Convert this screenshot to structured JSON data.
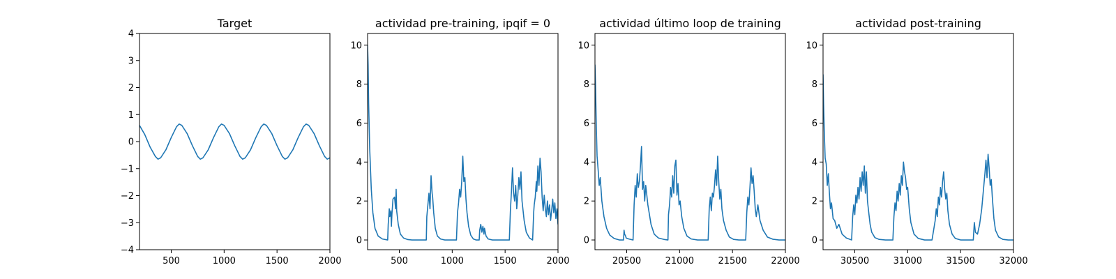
{
  "chart_data": [
    {
      "type": "line",
      "title": "Target",
      "xlim": [
        200,
        2000
      ],
      "ylim": [
        -4,
        4
      ],
      "xticks": [
        500,
        1000,
        1500,
        2000
      ],
      "yticks": [
        -4,
        -3,
        -2,
        -1,
        0,
        1,
        2,
        3,
        4
      ],
      "color": "#1f77b4",
      "series": [
        {
          "x": [
            200,
            250,
            300,
            350,
            375,
            400,
            450,
            500,
            550,
            575,
            600,
            650,
            700,
            750,
            775,
            800,
            850,
            900,
            950,
            975,
            1000,
            1050,
            1100,
            1150,
            1175,
            1200,
            1250,
            1300,
            1350,
            1375,
            1400,
            1450,
            1500,
            1550,
            1575,
            1600,
            1650,
            1700,
            1750,
            1775,
            1800,
            1850,
            1900,
            1950,
            1975,
            2000
          ],
          "values": [
            0.6,
            0.26,
            -0.2,
            -0.55,
            -0.65,
            -0.6,
            -0.3,
            0.15,
            0.55,
            0.65,
            0.6,
            0.3,
            -0.15,
            -0.55,
            -0.65,
            -0.6,
            -0.3,
            0.15,
            0.55,
            0.65,
            0.6,
            0.3,
            -0.15,
            -0.55,
            -0.65,
            -0.6,
            -0.3,
            0.15,
            0.55,
            0.65,
            0.6,
            0.3,
            -0.15,
            -0.55,
            -0.65,
            -0.6,
            -0.3,
            0.15,
            0.55,
            0.65,
            0.6,
            0.3,
            -0.15,
            -0.55,
            -0.65,
            -0.6
          ]
        }
      ]
    },
    {
      "type": "line",
      "title": "actividad pre-training, ipqif = 0",
      "xlim": [
        200,
        2000
      ],
      "ylim": [
        -0.5,
        10.6
      ],
      "xticks": [
        500,
        1000,
        1500,
        2000
      ],
      "yticks": [
        0,
        2,
        4,
        6,
        8,
        10
      ],
      "color": "#1f77b4",
      "series": [
        {
          "x": [
            200,
            205,
            210,
            220,
            235,
            250,
            270,
            300,
            340,
            390,
            395,
            405,
            410,
            420,
            425,
            430,
            440,
            455,
            465,
            470,
            475,
            490,
            510,
            540,
            580,
            620,
            690,
            755,
            760,
            770,
            780,
            790,
            800,
            810,
            815,
            825,
            840,
            860,
            890,
            930,
            990,
            1040,
            1050,
            1060,
            1070,
            1080,
            1090,
            1100,
            1110,
            1120,
            1130,
            1140,
            1155,
            1175,
            1200,
            1225,
            1240,
            1255,
            1260,
            1270,
            1280,
            1290,
            1300,
            1305,
            1320,
            1340,
            1380,
            1450,
            1540,
            1550,
            1560,
            1570,
            1580,
            1590,
            1600,
            1610,
            1620,
            1630,
            1640,
            1650,
            1660,
            1680,
            1700,
            1730,
            1760,
            1770,
            1775,
            1785,
            1795,
            1800,
            1810,
            1820,
            1830,
            1840,
            1850,
            1860,
            1870,
            1880,
            1890,
            1900,
            1910,
            1920,
            1930,
            1940,
            1950,
            1960,
            1970,
            1980,
            1990,
            2000
          ],
          "values": [
            10.0,
            9.0,
            7.0,
            4.7,
            2.6,
            1.4,
            0.6,
            0.2,
            0.05,
            0.0,
            0.8,
            1.6,
            1.2,
            1.5,
            0.7,
            1.3,
            2.1,
            2.2,
            1.6,
            2.6,
            1.5,
            0.8,
            0.3,
            0.1,
            0.02,
            0.0,
            0.0,
            0.0,
            1.2,
            1.8,
            2.4,
            1.6,
            3.3,
            2.4,
            2.2,
            1.4,
            0.6,
            0.2,
            0.05,
            0.0,
            0.0,
            0.0,
            1.4,
            1.9,
            2.6,
            2.2,
            3.0,
            4.3,
            3.0,
            3.2,
            2.1,
            1.4,
            0.7,
            0.25,
            0.05,
            0.0,
            0.0,
            0.0,
            0.5,
            0.8,
            0.4,
            0.7,
            0.3,
            0.6,
            0.2,
            0.05,
            0.0,
            0.0,
            0.0,
            1.5,
            2.5,
            3.7,
            2.4,
            2.0,
            2.8,
            1.6,
            2.3,
            3.2,
            2.6,
            3.5,
            2.0,
            1.0,
            0.4,
            0.1,
            0.0,
            1.4,
            1.8,
            2.2,
            3.0,
            2.5,
            3.8,
            2.8,
            4.2,
            3.5,
            2.2,
            1.5,
            2.3,
            1.6,
            1.2,
            2.0,
            1.3,
            1.8,
            1.0,
            1.5,
            2.1,
            1.4,
            1.9,
            1.1,
            1.6,
            0.8
          ]
        }
      ]
    },
    {
      "type": "line",
      "title": "actividad último loop de training",
      "xlim": [
        20200,
        22000
      ],
      "ylim": [
        -0.5,
        10.6
      ],
      "xticks": [
        20500,
        21000,
        21500,
        22000
      ],
      "yticks": [
        0,
        2,
        4,
        6,
        8,
        10
      ],
      "color": "#1f77b4",
      "series": [
        {
          "x": [
            20200,
            20205,
            20212,
            20220,
            20230,
            20240,
            20250,
            20265,
            20285,
            20310,
            20340,
            20380,
            20430,
            20470,
            20475,
            20480,
            20490,
            20495,
            20520,
            20560,
            20570,
            20580,
            20590,
            20600,
            20610,
            20620,
            20630,
            20640,
            20650,
            20660,
            20670,
            20680,
            20700,
            20730,
            20760,
            20800,
            20860,
            20890,
            20895,
            20905,
            20915,
            20925,
            20935,
            20945,
            20955,
            20965,
            20975,
            20985,
            20995,
            21005,
            21020,
            21040,
            21070,
            21110,
            21170,
            21230,
            21270,
            21280,
            21290,
            21300,
            21310,
            21320,
            21330,
            21340,
            21350,
            21360,
            21370,
            21380,
            21390,
            21400,
            21415,
            21440,
            21470,
            21510,
            21560,
            21625,
            21635,
            21645,
            21655,
            21665,
            21675,
            21685,
            21695,
            21705,
            21715,
            21725,
            21740,
            21760,
            21790,
            21830,
            21880,
            21940,
            22000
          ],
          "values": [
            9.0,
            8.0,
            6.0,
            4.3,
            3.6,
            2.8,
            3.2,
            2.0,
            1.2,
            0.6,
            0.25,
            0.08,
            0.0,
            0.0,
            0.5,
            0.3,
            0.2,
            0.1,
            0.05,
            0.0,
            1.8,
            2.8,
            2.2,
            3.4,
            2.7,
            3.0,
            3.8,
            4.8,
            2.6,
            3.0,
            2.0,
            2.8,
            1.8,
            0.8,
            0.3,
            0.1,
            0.02,
            0.0,
            1.3,
            1.8,
            2.7,
            2.2,
            3.3,
            2.4,
            3.8,
            4.1,
            2.3,
            2.9,
            1.8,
            2.0,
            1.2,
            0.6,
            0.2,
            0.05,
            0.0,
            0.0,
            0.0,
            1.6,
            2.2,
            1.5,
            2.4,
            2.2,
            2.8,
            3.6,
            2.8,
            4.3,
            3.0,
            2.1,
            2.6,
            1.6,
            1.0,
            0.5,
            0.15,
            0.03,
            0.0,
            0.0,
            1.4,
            2.2,
            1.8,
            2.7,
            3.7,
            2.9,
            3.3,
            2.5,
            1.6,
            1.2,
            1.8,
            1.0,
            0.5,
            0.15,
            0.04,
            0.0,
            0.0
          ]
        }
      ]
    },
    {
      "type": "line",
      "title": "actividad post-training",
      "xlim": [
        30200,
        32000
      ],
      "ylim": [
        -0.5,
        10.6
      ],
      "xticks": [
        30500,
        31000,
        31500,
        32000
      ],
      "yticks": [
        0,
        2,
        4,
        6,
        8,
        10
      ],
      "color": "#1f77b4",
      "series": [
        {
          "x": [
            30200,
            30205,
            30212,
            30220,
            30230,
            30240,
            30250,
            30260,
            30270,
            30280,
            30295,
            30310,
            30330,
            30350,
            30380,
            30420,
            30470,
            30480,
            30490,
            30500,
            30510,
            30520,
            30530,
            30540,
            30550,
            30560,
            30570,
            30580,
            30590,
            30600,
            30610,
            30620,
            30630,
            30645,
            30660,
            30690,
            30730,
            30790,
            30860,
            30870,
            30880,
            30890,
            30900,
            30910,
            30920,
            30930,
            30940,
            30950,
            30960,
            30970,
            30980,
            30990,
            31000,
            31015,
            31030,
            31060,
            31100,
            31160,
            31230,
            31260,
            31270,
            31280,
            31290,
            31300,
            31310,
            31320,
            31330,
            31340,
            31350,
            31360,
            31370,
            31380,
            31395,
            31420,
            31450,
            31500,
            31560,
            31620,
            31630,
            31640,
            31660,
            31680,
            31700,
            31710,
            31720,
            31730,
            31740,
            31750,
            31760,
            31770,
            31780,
            31790,
            31800,
            31815,
            31830,
            31860,
            31900,
            31950,
            32000
          ],
          "values": [
            8.5,
            7.0,
            5.5,
            4.2,
            3.9,
            2.8,
            3.4,
            2.4,
            1.6,
            1.9,
            1.1,
            1.0,
            0.6,
            0.8,
            0.3,
            0.1,
            0.0,
            1.2,
            1.8,
            1.3,
            2.3,
            1.9,
            2.7,
            2.1,
            3.2,
            2.5,
            3.5,
            2.8,
            3.8,
            2.4,
            3.5,
            2.0,
            1.5,
            0.8,
            0.4,
            0.12,
            0.03,
            0.0,
            0.0,
            1.2,
            1.9,
            1.5,
            2.5,
            2.0,
            2.9,
            2.3,
            3.3,
            2.8,
            4.0,
            3.5,
            3.2,
            2.6,
            2.7,
            1.6,
            0.9,
            0.3,
            0.08,
            0.0,
            0.0,
            1.0,
            1.6,
            1.2,
            2.2,
            1.8,
            2.7,
            2.2,
            3.0,
            3.5,
            2.6,
            2.1,
            2.4,
            1.5,
            0.8,
            0.3,
            0.08,
            0.0,
            0.0,
            0.0,
            0.9,
            0.4,
            0.3,
            0.8,
            1.6,
            2.2,
            2.8,
            3.4,
            4.1,
            3.2,
            4.4,
            3.7,
            2.8,
            3.1,
            2.2,
            1.1,
            0.5,
            0.15,
            0.03,
            0.0,
            0.0
          ]
        }
      ]
    }
  ]
}
